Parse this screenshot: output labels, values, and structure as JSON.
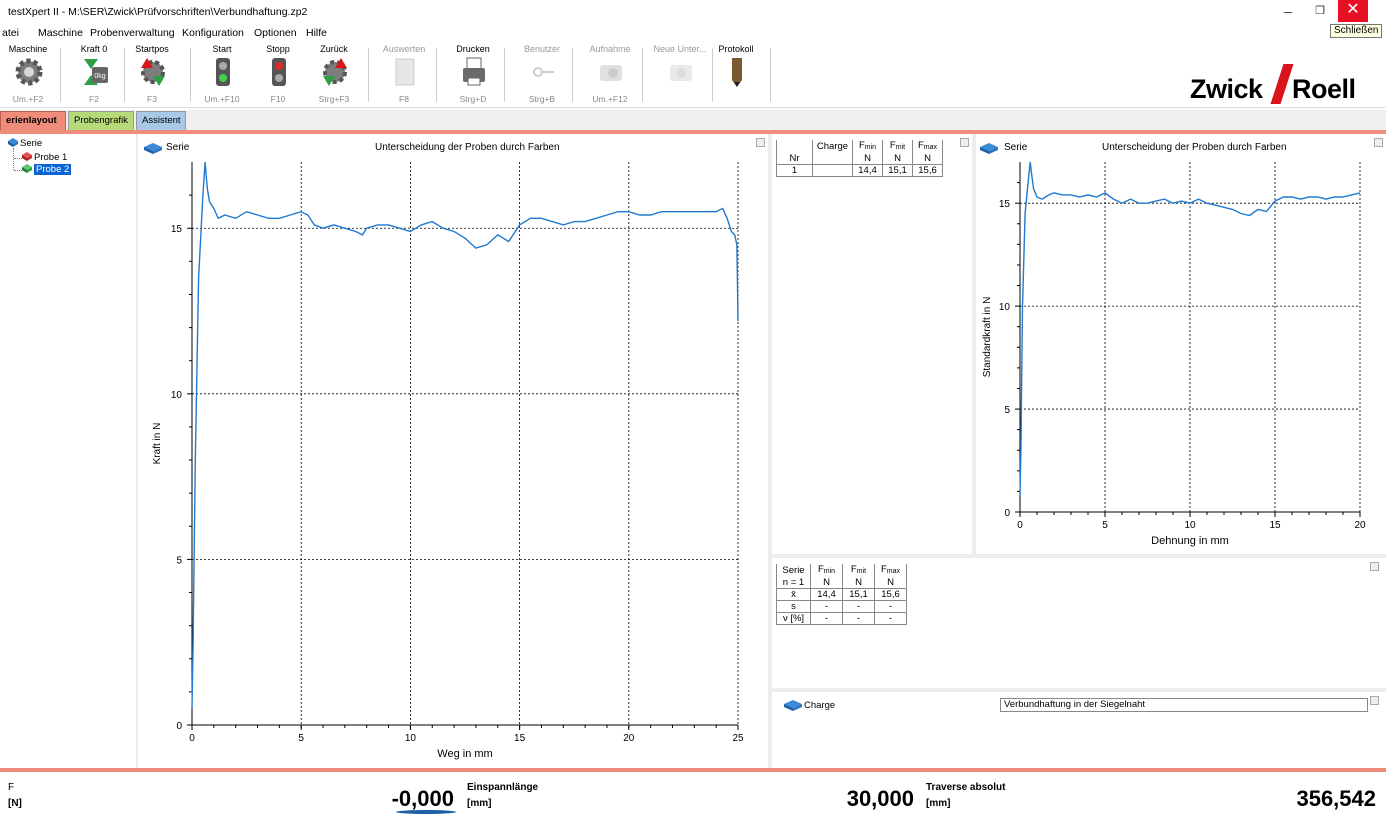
{
  "window": {
    "title": "testXpert II  - M:\\SER\\Zwick\\Prüfvorschriften\\Verbundhaftung.zp2",
    "minimize": "–",
    "restore": "❐",
    "close": "✕",
    "close_tooltip": "Schließen"
  },
  "menu": [
    "atei",
    "Maschine",
    "Probenverwaltung",
    "Konfiguration",
    "Optionen",
    "Hilfe"
  ],
  "toolbar": [
    {
      "label": "Maschine",
      "key": "Um.+F2",
      "icon": "gear-icon",
      "enabled": true
    },
    {
      "label": "Kraft 0",
      "key": "F2",
      "icon": "force-zero-icon",
      "enabled": true
    },
    {
      "label": "Startpos",
      "key": "F3",
      "icon": "start-position-icon",
      "enabled": true
    },
    {
      "label": "Start",
      "key": "Um.+F10",
      "icon": "start-light-icon",
      "enabled": true
    },
    {
      "label": "Stopp",
      "key": "F10",
      "icon": "stop-light-icon",
      "enabled": true
    },
    {
      "label": "Zurück",
      "key": "Strg+F3",
      "icon": "return-icon",
      "enabled": true
    },
    {
      "label": "Auswerten",
      "key": "F8",
      "icon": "evaluate-icon",
      "enabled": false
    },
    {
      "label": "Drucken",
      "key": "Strg+D",
      "icon": "printer-icon",
      "enabled": true
    },
    {
      "label": "Benutzer",
      "key": "Strg+B",
      "icon": "key-icon",
      "enabled": false
    },
    {
      "label": "Aufnahme",
      "key": "Um.+F12",
      "icon": "camera-icon",
      "enabled": false
    },
    {
      "label": "Neue Unter...",
      "key": "",
      "icon": "new-document-icon",
      "enabled": false
    },
    {
      "label": "Protokoll",
      "key": "",
      "icon": "pencil-icon",
      "enabled": true
    }
  ],
  "logo": {
    "left": "Zwick",
    "right": "Roell",
    "slash_color": "#d9141b"
  },
  "tabs": [
    "erienlayout",
    "Probengrafik",
    "Assistent"
  ],
  "tree": {
    "root": "Serie",
    "items": [
      {
        "label": "Probe 1",
        "color": "#c0282d",
        "selected": false
      },
      {
        "label": "Probe 2",
        "color": "#2ea043",
        "selected": true
      }
    ]
  },
  "left_chart_panel": {
    "series_label": "Serie",
    "title": "Unterscheidung der Proben durch Farben"
  },
  "right_chart_panel": {
    "series_label": "Serie",
    "title": "Unterscheidung der Proben durch Farben"
  },
  "chart_data": [
    {
      "type": "line",
      "title": "Unterscheidung der Proben durch Farben",
      "xlabel": "Weg in mm",
      "ylabel": "Kraft in N",
      "xlim": [
        0,
        25
      ],
      "ylim": [
        0,
        17
      ],
      "xticks": [
        "0",
        "5",
        "10",
        "15",
        "20",
        "25"
      ],
      "yticks": [
        "0",
        "5",
        "10",
        "15"
      ],
      "grid": true,
      "color": "#1f7ad1",
      "series": [
        {
          "x": [
            0,
            0.05,
            0.15,
            0.3,
            0.5,
            0.6,
            0.7,
            0.8,
            1.0,
            1.2,
            1.5,
            2.0,
            2.5,
            3.0,
            3.5,
            4.0,
            4.5,
            5.0,
            5.3,
            5.6,
            6.0,
            6.5,
            7.0,
            7.5,
            7.8,
            8.0,
            8.5,
            9.0,
            9.5,
            10.0,
            10.5,
            11.0,
            11.5,
            12.0,
            12.5,
            13.0,
            13.5,
            14.0,
            14.5,
            15.0,
            15.5,
            16.0,
            16.5,
            17.0,
            17.5,
            18.0,
            18.5,
            19.0,
            19.5,
            20.0,
            20.5,
            21.0,
            21.5,
            22.0,
            22.5,
            23.0,
            23.5,
            24.0,
            24.3,
            24.5,
            24.7,
            24.85,
            24.95,
            25.0
          ],
          "y": [
            0.5,
            2.5,
            8.0,
            13.5,
            16.0,
            17.0,
            16.2,
            15.8,
            15.6,
            15.3,
            15.4,
            15.3,
            15.5,
            15.4,
            15.3,
            15.3,
            15.4,
            15.5,
            15.4,
            15.1,
            15.0,
            15.1,
            15.0,
            14.9,
            14.8,
            15.0,
            15.1,
            15.1,
            15.0,
            14.9,
            15.1,
            15.2,
            15.0,
            14.9,
            14.7,
            14.4,
            14.5,
            14.8,
            14.6,
            15.1,
            15.3,
            15.3,
            15.2,
            15.1,
            15.2,
            15.2,
            15.3,
            15.4,
            15.5,
            15.5,
            15.4,
            15.4,
            15.5,
            15.5,
            15.5,
            15.5,
            15.5,
            15.5,
            15.6,
            15.3,
            14.9,
            14.8,
            14.5,
            12.2
          ]
        }
      ]
    },
    {
      "type": "line",
      "title": "Unterscheidung der Proben durch Farben",
      "xlabel": "Dehnung in mm",
      "ylabel": "Standardkraft in N",
      "xlim": [
        0,
        20
      ],
      "ylim": [
        0,
        17
      ],
      "xticks": [
        "0",
        "5",
        "10",
        "15",
        "20"
      ],
      "yticks": [
        "0",
        "5",
        "10",
        "15"
      ],
      "grid": true,
      "color": "#1f7ad1",
      "series": [
        {
          "x": [
            0,
            0.05,
            0.15,
            0.3,
            0.5,
            0.6,
            0.7,
            0.8,
            1.0,
            1.3,
            1.7,
            2.0,
            2.5,
            3.0,
            3.5,
            4.0,
            4.5,
            5.0,
            5.5,
            6.0,
            6.5,
            7.0,
            7.5,
            8.0,
            8.5,
            9.0,
            9.5,
            10.0,
            10.5,
            11.0,
            11.5,
            12.0,
            12.5,
            13.0,
            13.5,
            14.0,
            14.5,
            15.0,
            15.5,
            16.0,
            16.5,
            17.0,
            17.5,
            18.0,
            18.5,
            19.0,
            19.5,
            20.0
          ],
          "y": [
            0.8,
            3.0,
            10.0,
            14.5,
            16.2,
            17.0,
            16.3,
            15.7,
            15.3,
            15.2,
            15.4,
            15.5,
            15.4,
            15.4,
            15.3,
            15.4,
            15.3,
            15.5,
            15.2,
            15.0,
            15.2,
            15.0,
            15.0,
            15.1,
            15.2,
            15.0,
            15.1,
            15.0,
            15.2,
            15.0,
            14.9,
            14.8,
            14.7,
            14.5,
            14.4,
            14.7,
            14.6,
            15.1,
            15.3,
            15.3,
            15.2,
            15.3,
            15.3,
            15.2,
            15.3,
            15.3,
            15.4,
            15.5
          ]
        }
      ]
    }
  ],
  "result_table": {
    "headers": [
      "Nr",
      "Charge",
      "F_min",
      "F_mit",
      "F_max"
    ],
    "units": [
      "",
      "",
      "N",
      "N",
      "N"
    ],
    "rows": [
      [
        "1",
        "",
        "14,4",
        "15,1",
        "15,6"
      ]
    ]
  },
  "stats_table": {
    "header": "Serie",
    "n_label": "n = 1",
    "columns": [
      "F_min",
      "F_mit",
      "F_max"
    ],
    "units": [
      "N",
      "N",
      "N"
    ],
    "rows": [
      {
        "label": "x̄",
        "values": [
          "14,4",
          "15,1",
          "15,6"
        ]
      },
      {
        "label": "s",
        "values": [
          "-",
          "-",
          "-"
        ]
      },
      {
        "label": "ν [%]",
        "values": [
          "-",
          "-",
          "-"
        ]
      }
    ]
  },
  "charge_panel": {
    "label": "Charge",
    "value": "Verbundhaftung in der Siegelnaht"
  },
  "statusbar": {
    "f_label": "F",
    "f_unit": "[N]",
    "f_value": "-0,000",
    "einspann_label": "Einspannlänge",
    "einspann_unit": "[mm]",
    "einspann_value": "30,000",
    "traverse_label": "Traverse absolut",
    "traverse_unit": "[mm]",
    "traverse_value": "356,542"
  }
}
